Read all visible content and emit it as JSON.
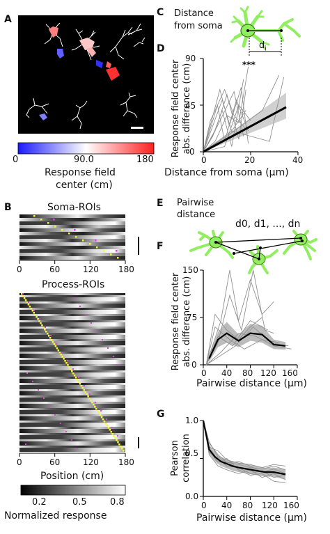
{
  "panels": {
    "A": "A",
    "B": "B",
    "C": "C",
    "D": "D",
    "E": "E",
    "F": "F",
    "G": "G"
  },
  "panel_a": {
    "colorbar": {
      "ticks": [
        "0",
        "90.0",
        "180"
      ],
      "label_line1": "Response field",
      "label_line2": "center (cm)",
      "colors": [
        "#1a1aff",
        "#ffffff",
        "#ff2020"
      ]
    }
  },
  "panel_b": {
    "soma_title": "Soma-ROIs",
    "process_title": "Process-ROIs",
    "xticks": [
      "0",
      "60",
      "120",
      "180"
    ],
    "xlabel": "Position (cm)",
    "colorbar_ticks": [
      "0.2",
      "0.5",
      "0.8"
    ],
    "colorbar_label": "Normalized response",
    "colors": {
      "peak_marker": "#f5f542",
      "other_marker": "#e040e0",
      "heat_low": "#000000",
      "heat_high": "#ffffff"
    }
  },
  "panel_c": {
    "title_line1": "Distance",
    "title_line2": "from soma",
    "annotation": "d",
    "annotation_sub": "i",
    "cell_color": "#90ee60"
  },
  "panel_e": {
    "title_line1": "Pairwise",
    "title_line2": "distance",
    "annotation": "d0, d1, ..., dn"
  },
  "chart_data": [
    {
      "id": "D",
      "type": "scatter",
      "xlabel": "Distance from soma (μm)",
      "ylabel": "Response field center abs. difference (cm)",
      "xticks": [
        "0",
        "20",
        "40"
      ],
      "yticks": [
        "0",
        "45",
        "90"
      ],
      "xlim": [
        0,
        40
      ],
      "ylim": [
        0,
        90
      ],
      "significance": "***",
      "fit_line": {
        "x": [
          0,
          35
        ],
        "y": [
          0,
          43
        ]
      },
      "ci_band": {
        "x": [
          0,
          35
        ],
        "lower": [
          0,
          32
        ],
        "upper": [
          0,
          57
        ]
      },
      "lines": [
        {
          "x": [
            0,
            5,
            10,
            15,
            18
          ],
          "y": [
            0,
            20,
            55,
            12,
            60
          ]
        },
        {
          "x": [
            0,
            6,
            9,
            14,
            19
          ],
          "y": [
            0,
            45,
            10,
            50,
            20
          ]
        },
        {
          "x": [
            0,
            4,
            8,
            12,
            17
          ],
          "y": [
            0,
            15,
            40,
            5,
            70
          ]
        },
        {
          "x": [
            0,
            7,
            11,
            16,
            19
          ],
          "y": [
            0,
            60,
            25,
            62,
            8
          ]
        },
        {
          "x": [
            0,
            3,
            9,
            13,
            18
          ],
          "y": [
            0,
            30,
            60,
            35,
            22
          ]
        },
        {
          "x": [
            0,
            5,
            10,
            15,
            19
          ],
          "y": [
            0,
            10,
            35,
            28,
            82
          ]
        },
        {
          "x": [
            0,
            8,
            12,
            18
          ],
          "y": [
            0,
            50,
            20,
            40
          ]
        },
        {
          "x": [
            0,
            6,
            13,
            17
          ],
          "y": [
            0,
            25,
            58,
            15
          ]
        },
        {
          "x": [
            0,
            9,
            15,
            20
          ],
          "y": [
            0,
            5,
            45,
            30
          ]
        },
        {
          "x": [
            0,
            10,
            25,
            32
          ],
          "y": [
            0,
            15,
            40,
            74
          ]
        },
        {
          "x": [
            0,
            12,
            28,
            34
          ],
          "y": [
            0,
            20,
            10,
            72
          ]
        }
      ],
      "line_color": "#909090",
      "fit_color": "#000000",
      "band_color": "#c8c8c8"
    },
    {
      "id": "F",
      "type": "line",
      "xlabel": "Pairwise distance (μm)",
      "ylabel": "Response field center abs. difference (cm)",
      "xticks": [
        "0",
        "40",
        "80",
        "120",
        "160"
      ],
      "yticks": [
        "0",
        "75",
        "150"
      ],
      "xlim": [
        0,
        160
      ],
      "ylim": [
        0,
        150
      ],
      "mean": {
        "x": [
          10,
          25,
          40,
          60,
          80,
          100,
          120,
          140
        ],
        "y": [
          10,
          40,
          50,
          38,
          50,
          48,
          32,
          30
        ]
      },
      "band": {
        "x": [
          10,
          25,
          40,
          60,
          80,
          100,
          120,
          140
        ],
        "lower": [
          5,
          28,
          35,
          28,
          38,
          35,
          25,
          24
        ],
        "upper": [
          15,
          52,
          68,
          48,
          65,
          62,
          40,
          36
        ]
      },
      "lines": [
        {
          "x": [
            5,
            30,
            45,
            60,
            80,
            100,
            120
          ],
          "y": [
            0,
            70,
            150,
            70,
            135,
            80,
            100
          ]
        },
        {
          "x": [
            5,
            25,
            45,
            65,
            85,
            105,
            120
          ],
          "y": [
            0,
            35,
            110,
            55,
            150,
            55,
            50
          ]
        },
        {
          "x": [
            5,
            20,
            40,
            60,
            80,
            100
          ],
          "y": [
            0,
            80,
            55,
            40,
            60,
            75
          ]
        },
        {
          "x": [
            5,
            25,
            50,
            80,
            110
          ],
          "y": [
            0,
            45,
            30,
            70,
            55
          ]
        },
        {
          "x": [
            5,
            30,
            60,
            90,
            120,
            150
          ],
          "y": [
            0,
            20,
            50,
            45,
            30,
            25
          ]
        },
        {
          "x": [
            5,
            20,
            45,
            70,
            100,
            130
          ],
          "y": [
            0,
            60,
            40,
            25,
            40,
            35
          ]
        },
        {
          "x": [
            5,
            30,
            55,
            85,
            115,
            145
          ],
          "y": [
            0,
            15,
            30,
            60,
            35,
            30
          ]
        }
      ],
      "line_color": "#909090",
      "mean_color": "#000000",
      "band_color": "#b0b0b0"
    },
    {
      "id": "G",
      "type": "line",
      "xlabel": "Pairwise distance (μm)",
      "ylabel": "Pearson correlation",
      "xticks": [
        "0",
        "40",
        "80",
        "120",
        "160"
      ],
      "yticks": [
        "0.0",
        "0.5",
        "1.0"
      ],
      "xlim": [
        0,
        160
      ],
      "ylim": [
        0,
        1
      ],
      "mean": {
        "x": [
          0,
          10,
          20,
          30,
          40,
          50,
          60,
          75,
          90,
          105,
          120,
          140
        ],
        "y": [
          1.0,
          0.62,
          0.52,
          0.46,
          0.43,
          0.4,
          0.38,
          0.36,
          0.34,
          0.32,
          0.32,
          0.29
        ]
      },
      "band": {
        "x": [
          0,
          10,
          20,
          30,
          40,
          50,
          60,
          75,
          90,
          105,
          120,
          140
        ],
        "lower": [
          0.95,
          0.56,
          0.46,
          0.4,
          0.37,
          0.34,
          0.32,
          0.3,
          0.28,
          0.26,
          0.26,
          0.22
        ],
        "upper": [
          1.0,
          0.68,
          0.58,
          0.52,
          0.49,
          0.46,
          0.44,
          0.42,
          0.4,
          0.38,
          0.38,
          0.36
        ]
      },
      "lines": [
        {
          "x": [
            0,
            10,
            25,
            40,
            60,
            80,
            100,
            120,
            140
          ],
          "y": [
            1.0,
            0.7,
            0.55,
            0.45,
            0.42,
            0.38,
            0.36,
            0.4,
            0.35
          ]
        },
        {
          "x": [
            0,
            10,
            25,
            40,
            60,
            80,
            100,
            120,
            140
          ],
          "y": [
            1.0,
            0.6,
            0.45,
            0.5,
            0.35,
            0.28,
            0.3,
            0.2,
            0.18
          ]
        },
        {
          "x": [
            0,
            10,
            25,
            40,
            60,
            80,
            100,
            120,
            140
          ],
          "y": [
            1.0,
            0.55,
            0.4,
            0.35,
            0.3,
            0.35,
            0.25,
            0.3,
            0.22
          ]
        },
        {
          "x": [
            0,
            10,
            25,
            40,
            60,
            80,
            100,
            120,
            140
          ],
          "y": [
            1.0,
            0.65,
            0.6,
            0.48,
            0.44,
            0.42,
            0.38,
            0.42,
            0.4
          ]
        },
        {
          "x": [
            0,
            10,
            25,
            40,
            60,
            80,
            100,
            120,
            140
          ],
          "y": [
            1.0,
            0.58,
            0.5,
            0.4,
            0.38,
            0.3,
            0.34,
            0.25,
            0.28
          ]
        },
        {
          "x": [
            0,
            10,
            25,
            40,
            60,
            80,
            100,
            120,
            140
          ],
          "y": [
            1.0,
            0.72,
            0.52,
            0.44,
            0.46,
            0.4,
            0.32,
            0.36,
            0.3
          ]
        }
      ],
      "line_color": "#909090",
      "mean_color": "#000000",
      "band_color": "#b0b0b0"
    }
  ]
}
